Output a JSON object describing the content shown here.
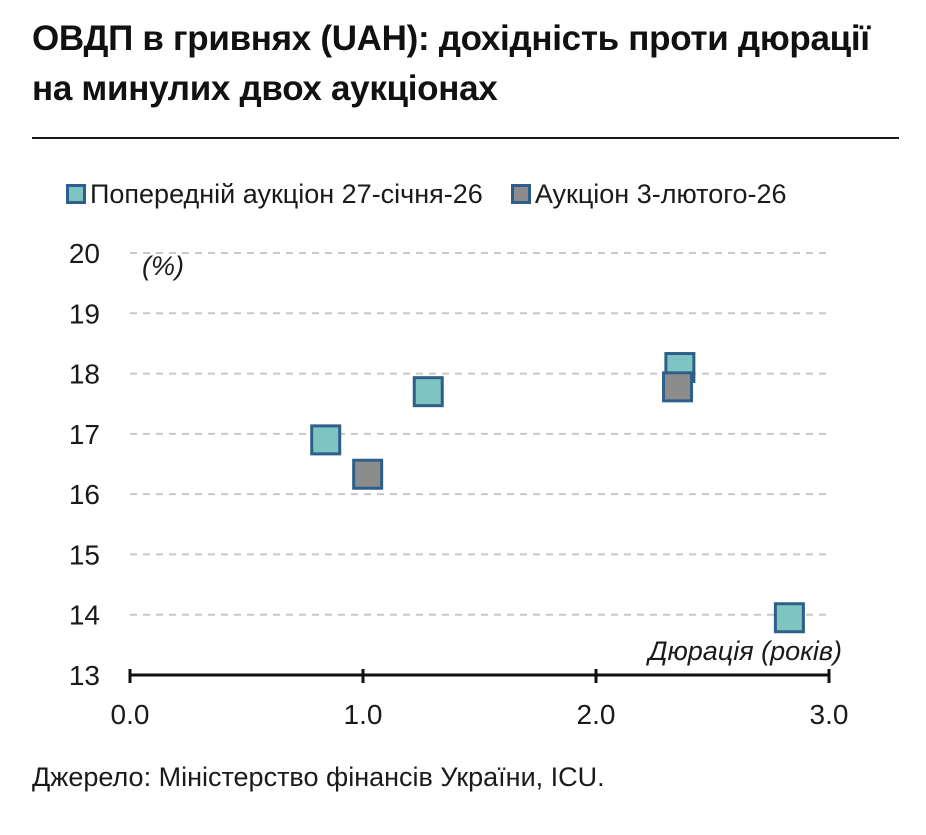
{
  "title": "ОВДП в гривнях (UAH): дохідність проти дюрації на минулих двох аукціонах",
  "source": "Джерело: Міністерство фінансів України, ICU.",
  "legend_position": "top-left",
  "colors": {
    "prev_fill": "#7ec4c0",
    "curr_fill": "#8c8c8c",
    "marker_border": "#2e5f8a",
    "grid": "#c8c8c8",
    "axis": "#111111"
  },
  "chart_data": {
    "type": "scatter",
    "ylabel": "(%)",
    "xlabel": "Дюрація (років)",
    "xlim": [
      0,
      3
    ],
    "ylim": [
      13,
      20
    ],
    "x_ticks": [
      "0.0",
      "1.0",
      "2.0",
      "3.0"
    ],
    "y_ticks": [
      "13",
      "14",
      "15",
      "16",
      "17",
      "18",
      "19",
      "20"
    ],
    "grid": "horizontal dashed",
    "series": [
      {
        "name": "Попередній аукціон 27-січня-26",
        "color": "#7ec4c0",
        "points": [
          {
            "x": 0.84,
            "y": 16.9
          },
          {
            "x": 1.28,
            "y": 17.7
          },
          {
            "x": 2.36,
            "y": 18.1
          },
          {
            "x": 2.83,
            "y": 13.95
          }
        ]
      },
      {
        "name": "Аукціон 3-лютого-26",
        "color": "#8c8c8c",
        "points": [
          {
            "x": 1.02,
            "y": 16.33
          },
          {
            "x": 2.35,
            "y": 17.78
          }
        ]
      }
    ]
  }
}
